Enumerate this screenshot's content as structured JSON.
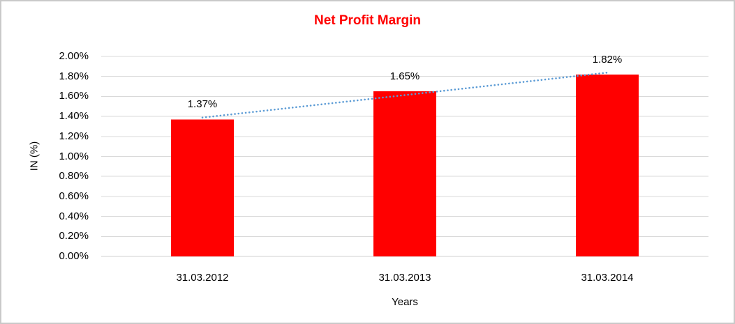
{
  "chart_data": {
    "type": "bar",
    "title": "Net Profit Margin",
    "title_color": "#FF0000",
    "xlabel": "Years",
    "ylabel": "IN (%)",
    "categories": [
      "31.03.2012",
      "31.03.2013",
      "31.03.2014"
    ],
    "values": [
      1.37,
      1.65,
      1.82
    ],
    "data_labels": [
      "1.37%",
      "1.65%",
      "1.82%"
    ],
    "ylim": [
      0,
      2
    ],
    "ytick_step": 0.2,
    "ytick_labels": [
      "0.00%",
      "0.20%",
      "0.40%",
      "0.60%",
      "0.80%",
      "1.00%",
      "1.20%",
      "1.40%",
      "1.60%",
      "1.80%",
      "2.00%"
    ],
    "grid": true,
    "legend": "none",
    "bar_color": "#FF0000",
    "gridline_color": "#D9D9D9",
    "axis_line_color": "#D0D0D0",
    "text_color": "#000000",
    "trendline": {
      "type": "linear",
      "style": "dotted",
      "color": "#5B9BD5"
    }
  }
}
